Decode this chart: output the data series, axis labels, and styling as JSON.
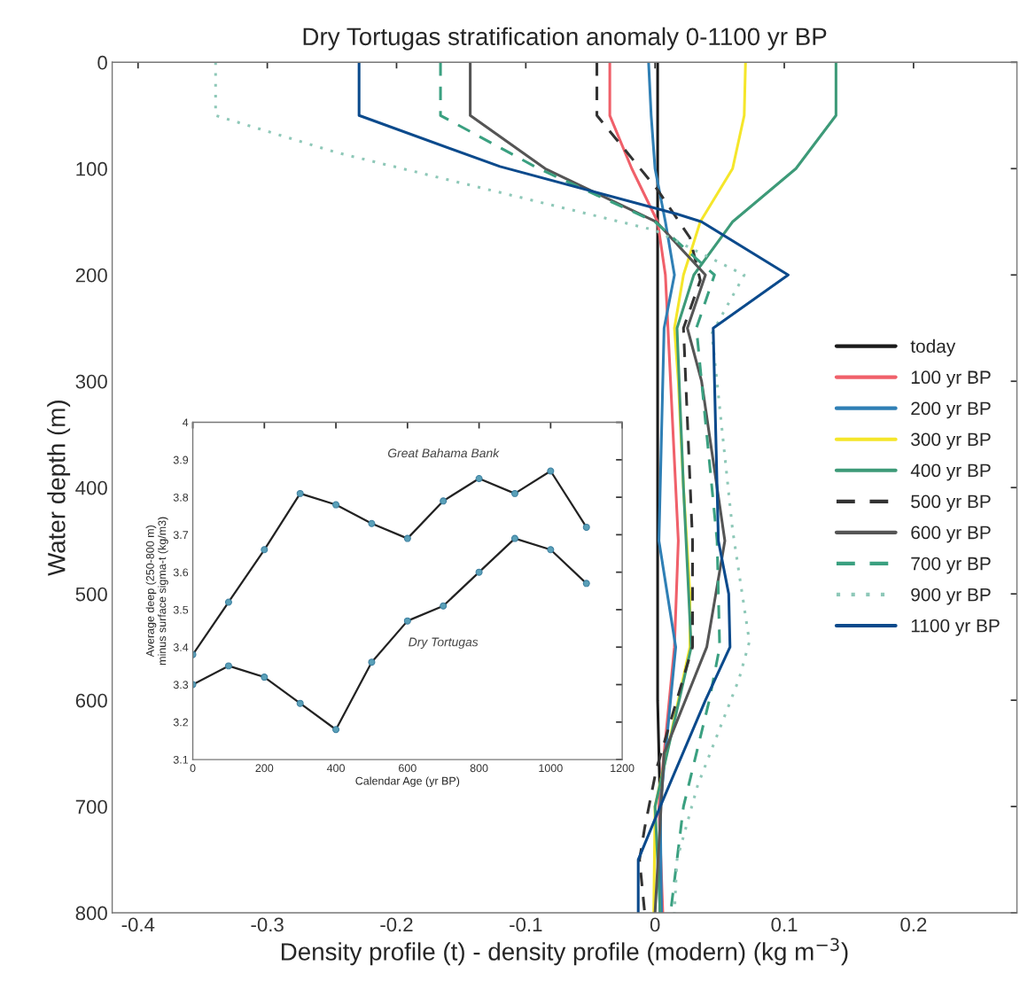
{
  "chart_data": [
    {
      "type": "line",
      "title": "Dry Tortugas stratification anomaly 0-1100 yr BP",
      "xlabel": "Density profile (t) - density profile (modern) (kg m$^{−3}$)",
      "ylabel": "Water depth (m)",
      "xlim": [
        -0.42,
        0.28
      ],
      "xticks": [
        -0.4,
        -0.3,
        -0.2,
        -0.1,
        0,
        0.1,
        0.2
      ],
      "ylim": [
        800,
        0
      ],
      "yticks": [
        0,
        100,
        200,
        300,
        400,
        500,
        600,
        700,
        800
      ],
      "grid": false,
      "legend": "right",
      "series": [
        {
          "name": "today",
          "color": "#1a1a1a",
          "line_style": "solid",
          "x": [
            0.002,
            0.002,
            0.002,
            0.002,
            0.002,
            0.002,
            0.004,
            0.004
          ],
          "values": [
            0,
            100,
            200,
            300,
            450,
            600,
            700,
            800
          ]
        },
        {
          "name": "100 yr BP",
          "color": "#f0606a",
          "line_style": "solid",
          "x": [
            -0.035,
            -0.035,
            -0.018,
            0.002,
            0.008,
            0.01,
            0.012,
            0.018,
            0.015,
            0.003,
            0.006
          ],
          "values": [
            0,
            50,
            100,
            150,
            200,
            250,
            300,
            450,
            550,
            700,
            800
          ]
        },
        {
          "name": "200 yr BP",
          "color": "#2f7fb5",
          "line_style": "solid",
          "x": [
            -0.005,
            -0.003,
            0.0,
            0.008,
            0.015,
            0.007,
            0.003,
            0.016,
            0.004,
            0.005
          ],
          "values": [
            0,
            50,
            100,
            150,
            200,
            250,
            450,
            550,
            700,
            800
          ]
        },
        {
          "name": "300 yr BP",
          "color": "#f5e62a",
          "line_style": "solid",
          "x": [
            0.07,
            0.069,
            0.06,
            0.035,
            0.022,
            0.015,
            0.018,
            0.022,
            0.027,
            0.027,
            0.0,
            -0.001
          ],
          "values": [
            0,
            50,
            100,
            150,
            200,
            250,
            300,
            400,
            500,
            550,
            700,
            800
          ]
        },
        {
          "name": "400 yr BP",
          "color": "#3d9a78",
          "line_style": "solid",
          "x": [
            0.14,
            0.14,
            0.109,
            0.06,
            0.03,
            0.017,
            0.022,
            0.028,
            0.0,
            0.004
          ],
          "values": [
            0,
            50,
            100,
            150,
            200,
            250,
            400,
            550,
            700,
            800
          ]
        },
        {
          "name": "500 yr BP",
          "color": "#333333",
          "line_style": "dashed",
          "x": [
            -0.045,
            -0.045,
            0.002,
            0.027,
            0.035,
            0.022,
            0.029,
            0.029,
            0.001,
            -0.008,
            -0.012,
            -0.008
          ],
          "values": [
            0,
            50,
            120,
            165,
            205,
            250,
            450,
            550,
            665,
            720,
            750,
            800
          ]
        },
        {
          "name": "600 yr BP",
          "color": "#555555",
          "line_style": "solid",
          "x": [
            -0.143,
            -0.143,
            -0.085,
            0.001,
            0.039,
            0.025,
            0.036,
            0.054,
            0.04,
            0.007,
            0.0
          ],
          "values": [
            0,
            50,
            100,
            150,
            200,
            250,
            300,
            450,
            550,
            650,
            800
          ]
        },
        {
          "name": "700 yr BP",
          "color": "#3aa080",
          "line_style": "dashed",
          "x": [
            -0.166,
            -0.166,
            -0.09,
            -0.045,
            0.0,
            0.046,
            0.032,
            0.048,
            0.05,
            0.042,
            0.022,
            0.012
          ],
          "values": [
            0,
            50,
            100,
            125,
            150,
            200,
            250,
            450,
            550,
            600,
            700,
            800
          ]
        },
        {
          "name": "900 yr BP",
          "color": "#8ec8b8",
          "line_style": "dotted",
          "x": [
            -0.34,
            -0.34,
            -0.246,
            0.0,
            0.069,
            0.044,
            0.06,
            0.073,
            0.065,
            0.033,
            0.017,
            0.015
          ],
          "values": [
            0,
            50,
            85,
            158,
            200,
            255,
            440,
            545,
            580,
            680,
            750,
            800
          ]
        },
        {
          "name": "1100 yr BP",
          "color": "#0b4a8c",
          "line_style": "solid",
          "x": [
            -0.229,
            -0.229,
            -0.12,
            0.015,
            0.036,
            0.103,
            0.045,
            0.049,
            0.057,
            0.058,
            0.039,
            0.004,
            -0.013,
            -0.013
          ],
          "values": [
            0,
            50,
            98,
            142,
            150,
            200,
            250,
            450,
            500,
            550,
            600,
            700,
            750,
            800
          ]
        }
      ]
    },
    {
      "type": "line",
      "xlabel": "Calendar Age (yr BP)",
      "ylabel": "Average deep (250-800 m)\nminus surface sigma-t (kg/m3)",
      "xlim": [
        0,
        1200
      ],
      "xticks": [
        0,
        200,
        400,
        600,
        800,
        1000,
        1200
      ],
      "ylim": [
        3.1,
        4
      ],
      "yticks": [
        3.1,
        3.2,
        3.3,
        3.4,
        3.5,
        3.6,
        3.7,
        3.8,
        3.9,
        4
      ],
      "grid": false,
      "marker": "circle",
      "series": [
        {
          "name": "Great Bahama Bank",
          "color": "#222222",
          "x": [
            0,
            100,
            200,
            300,
            400,
            500,
            600,
            700,
            800,
            900,
            1000,
            1100
          ],
          "values": [
            3.38,
            3.52,
            3.66,
            3.81,
            3.78,
            3.73,
            3.69,
            3.79,
            3.85,
            3.81,
            3.87,
            3.72
          ]
        },
        {
          "name": "Dry Tortugas",
          "color": "#222222",
          "x": [
            0,
            100,
            200,
            300,
            400,
            500,
            600,
            700,
            800,
            900,
            1000,
            1100
          ],
          "values": [
            3.3,
            3.35,
            3.32,
            3.25,
            3.18,
            3.36,
            3.47,
            3.51,
            3.6,
            3.69,
            3.66,
            3.57
          ]
        }
      ]
    }
  ]
}
